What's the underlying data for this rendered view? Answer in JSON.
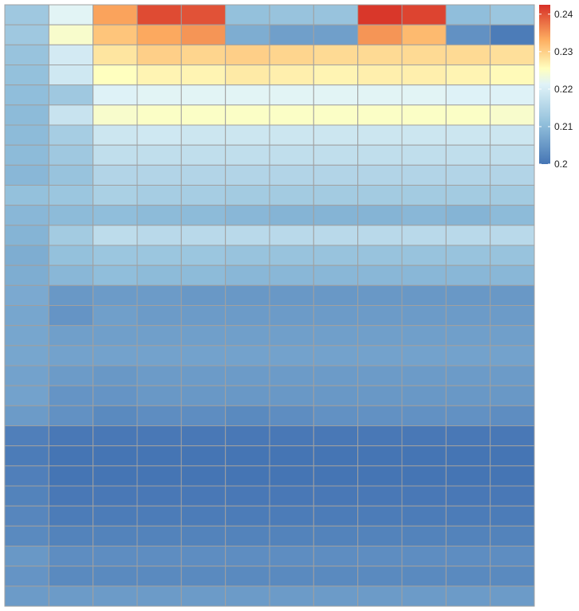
{
  "chart_data": {
    "type": "heatmap",
    "title": "",
    "xlabel": "",
    "ylabel": "",
    "n_rows": 30,
    "n_cols": 12,
    "color_scale": {
      "min": 0.2,
      "max": 0.2425,
      "stops": [
        {
          "t": 0.0,
          "color": "#4575b4"
        },
        {
          "t": 0.25,
          "color": "#91bfdb"
        },
        {
          "t": 0.5,
          "color": "#e0f3f8"
        },
        {
          "t": 0.6,
          "color": "#ffffbf"
        },
        {
          "t": 0.78,
          "color": "#fdae61"
        },
        {
          "t": 1.0,
          "color": "#d73027"
        }
      ]
    },
    "legend": {
      "position": "top-right",
      "ticks": [
        {
          "value": 0.2,
          "label": "0.2"
        },
        {
          "value": 0.21,
          "label": "0.21"
        },
        {
          "value": 0.22,
          "label": "0.22"
        },
        {
          "value": 0.23,
          "label": "0.23"
        },
        {
          "value": 0.24,
          "label": "0.24"
        }
      ]
    },
    "grid_color": "#a0a0a0",
    "values": [
      [
        0.2125,
        0.2215,
        0.234,
        0.2405,
        0.24,
        0.211,
        0.2115,
        0.2115,
        0.242,
        0.241,
        0.2105,
        0.212
      ],
      [
        0.2125,
        0.2245,
        0.231,
        0.2335,
        0.235,
        0.208,
        0.206,
        0.206,
        0.235,
        0.232,
        0.204,
        0.201
      ],
      [
        0.2115,
        0.2195,
        0.228,
        0.23,
        0.2295,
        0.23,
        0.2295,
        0.229,
        0.229,
        0.229,
        0.229,
        0.2285
      ],
      [
        0.211,
        0.219,
        0.2255,
        0.2265,
        0.2265,
        0.2275,
        0.227,
        0.2265,
        0.227,
        0.227,
        0.2265,
        0.226
      ],
      [
        0.2105,
        0.2125,
        0.221,
        0.2215,
        0.2215,
        0.2215,
        0.2215,
        0.2215,
        0.2215,
        0.2215,
        0.221,
        0.221
      ],
      [
        0.21,
        0.218,
        0.2245,
        0.225,
        0.225,
        0.225,
        0.225,
        0.225,
        0.225,
        0.225,
        0.225,
        0.2245
      ],
      [
        0.21,
        0.2135,
        0.2185,
        0.219,
        0.2185,
        0.2185,
        0.2185,
        0.2185,
        0.2185,
        0.2185,
        0.2185,
        0.2185
      ],
      [
        0.21,
        0.2125,
        0.217,
        0.217,
        0.217,
        0.217,
        0.217,
        0.217,
        0.217,
        0.217,
        0.217,
        0.217
      ],
      [
        0.2095,
        0.2115,
        0.215,
        0.215,
        0.215,
        0.215,
        0.215,
        0.215,
        0.215,
        0.215,
        0.215,
        0.215
      ],
      [
        0.211,
        0.212,
        0.214,
        0.2135,
        0.2135,
        0.213,
        0.213,
        0.213,
        0.213,
        0.213,
        0.213,
        0.213
      ],
      [
        0.2095,
        0.21,
        0.2105,
        0.21,
        0.21,
        0.2095,
        0.209,
        0.209,
        0.209,
        0.2095,
        0.209,
        0.21
      ],
      [
        0.209,
        0.213,
        0.2165,
        0.216,
        0.216,
        0.216,
        0.216,
        0.216,
        0.216,
        0.216,
        0.216,
        0.216
      ],
      [
        0.208,
        0.211,
        0.212,
        0.212,
        0.212,
        0.2115,
        0.2115,
        0.2115,
        0.2115,
        0.2115,
        0.2115,
        0.2115
      ],
      [
        0.208,
        0.2095,
        0.2105,
        0.21,
        0.21,
        0.2095,
        0.2095,
        0.2095,
        0.2095,
        0.2095,
        0.2095,
        0.2095
      ],
      [
        0.2075,
        0.205,
        0.2055,
        0.2055,
        0.205,
        0.205,
        0.205,
        0.205,
        0.205,
        0.205,
        0.205,
        0.205
      ],
      [
        0.207,
        0.2045,
        0.206,
        0.2055,
        0.2055,
        0.2055,
        0.2055,
        0.2055,
        0.2055,
        0.2055,
        0.2055,
        0.2055
      ],
      [
        0.207,
        0.206,
        0.206,
        0.206,
        0.206,
        0.206,
        0.206,
        0.206,
        0.206,
        0.206,
        0.206,
        0.206
      ],
      [
        0.207,
        0.2065,
        0.2065,
        0.2065,
        0.2065,
        0.2065,
        0.2065,
        0.2065,
        0.2065,
        0.2065,
        0.2065,
        0.2065
      ],
      [
        0.2065,
        0.2055,
        0.205,
        0.2055,
        0.2055,
        0.2055,
        0.2055,
        0.2055,
        0.2055,
        0.2055,
        0.2055,
        0.2055
      ],
      [
        0.2065,
        0.2045,
        0.2045,
        0.205,
        0.205,
        0.205,
        0.205,
        0.205,
        0.205,
        0.205,
        0.205,
        0.205
      ],
      [
        0.2055,
        0.204,
        0.203,
        0.2035,
        0.2035,
        0.203,
        0.2035,
        0.204,
        0.204,
        0.204,
        0.204,
        0.2035
      ],
      [
        0.2015,
        0.2005,
        0.2005,
        0.2005,
        0.2005,
        0.2005,
        0.2005,
        0.2005,
        0.2005,
        0.2005,
        0.2005,
        0.2005
      ],
      [
        0.201,
        0.2,
        0.2,
        0.2,
        0.2,
        0.2,
        0.2,
        0.2,
        0.2,
        0.2,
        0.2,
        0.2
      ],
      [
        0.2015,
        0.2,
        0.2,
        0.2,
        0.2,
        0.2,
        0.2,
        0.2,
        0.2,
        0.2,
        0.2,
        0.2
      ],
      [
        0.202,
        0.2005,
        0.2005,
        0.2005,
        0.2005,
        0.2005,
        0.2005,
        0.2005,
        0.2005,
        0.2005,
        0.2005,
        0.2005
      ],
      [
        0.2025,
        0.201,
        0.201,
        0.201,
        0.201,
        0.201,
        0.201,
        0.201,
        0.201,
        0.201,
        0.201,
        0.201
      ],
      [
        0.203,
        0.202,
        0.202,
        0.202,
        0.202,
        0.202,
        0.202,
        0.202,
        0.202,
        0.202,
        0.202,
        0.202
      ],
      [
        0.205,
        0.2035,
        0.2035,
        0.2035,
        0.2035,
        0.2035,
        0.2035,
        0.2035,
        0.2035,
        0.2035,
        0.2035,
        0.2035
      ],
      [
        0.2045,
        0.203,
        0.203,
        0.203,
        0.203,
        0.203,
        0.203,
        0.203,
        0.203,
        0.203,
        0.203,
        0.203
      ],
      [
        0.2055,
        0.2055,
        0.2055,
        0.2055,
        0.2055,
        0.2055,
        0.2055,
        0.2055,
        0.2055,
        0.2055,
        0.2055,
        0.2055
      ]
    ]
  }
}
